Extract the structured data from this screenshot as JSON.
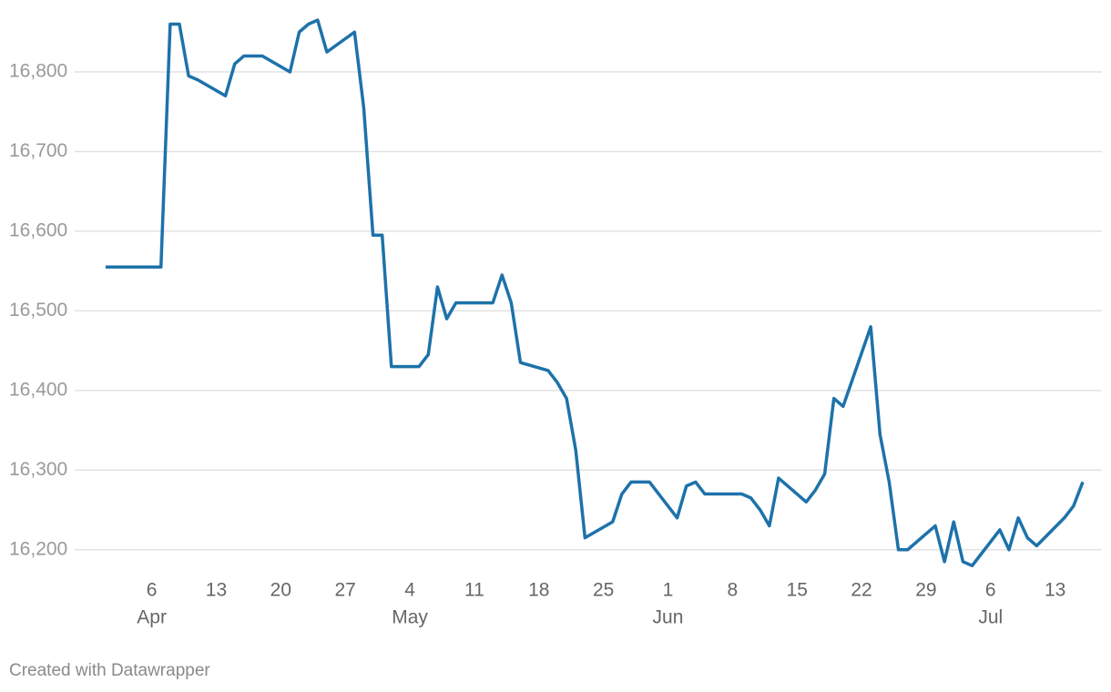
{
  "chart_data": {
    "type": "line",
    "x": [
      "Apr 1",
      "Apr 7",
      "Apr 8",
      "Apr 9",
      "Apr 10",
      "Apr 11",
      "Apr 14",
      "Apr 15",
      "Apr 16",
      "Apr 18",
      "Apr 21",
      "Apr 22",
      "Apr 23",
      "Apr 24",
      "Apr 25",
      "Apr 28",
      "Apr 29",
      "Apr 30",
      "May 1",
      "May 2",
      "May 5",
      "May 6",
      "May 7",
      "May 8",
      "May 9",
      "May 13",
      "May 14",
      "May 15",
      "May 16",
      "May 19",
      "May 20",
      "May 21",
      "May 22",
      "May 23",
      "May 26",
      "May 27",
      "May 28",
      "May 30",
      "Jun 2",
      "Jun 3",
      "Jun 4",
      "Jun 5",
      "Jun 9",
      "Jun 10",
      "Jun 11",
      "Jun 12",
      "Jun 13",
      "Jun 16",
      "Jun 17",
      "Jun 18",
      "Jun 19",
      "Jun 20",
      "Jun 23",
      "Jun 24",
      "Jun 25",
      "Jun 26",
      "Jun 27",
      "Jun 30",
      "Jul 1",
      "Jul 2",
      "Jul 3",
      "Jul 4",
      "Jul 7",
      "Jul 8",
      "Jul 9",
      "Jul 10",
      "Jul 11",
      "Jul 14",
      "Jul 15",
      "Jul 16"
    ],
    "series": [
      {
        "color": "#1d72aa",
        "values": [
          16555,
          16555,
          16860,
          16860,
          16795,
          16790,
          16770,
          16810,
          16820,
          16820,
          16800,
          16850,
          16860,
          16865,
          16825,
          16850,
          16755,
          16595,
          16595,
          16430,
          16430,
          16445,
          16530,
          16490,
          16510,
          16510,
          16545,
          16510,
          16435,
          16425,
          16410,
          16390,
          16325,
          16215,
          16235,
          16270,
          16285,
          16285,
          16240,
          16280,
          16285,
          16270,
          16270,
          16265,
          16250,
          16230,
          16290,
          16260,
          16275,
          16295,
          16390,
          16380,
          16480,
          16345,
          16285,
          16200,
          16200,
          16230,
          16185,
          16235,
          16185,
          16180,
          16225,
          16200,
          16240,
          16215,
          16205,
          16240,
          16255,
          16285
        ]
      }
    ],
    "xlim": [
      "Apr 1",
      "Jul 16"
    ],
    "xticks": [
      {
        "value": "Apr 6",
        "label": "6"
      },
      {
        "value": "Apr 13",
        "label": "13"
      },
      {
        "value": "Apr 20",
        "label": "20"
      },
      {
        "value": "Apr 27",
        "label": "27"
      },
      {
        "value": "May 4",
        "label": "4"
      },
      {
        "value": "May 11",
        "label": "11"
      },
      {
        "value": "May 18",
        "label": "18"
      },
      {
        "value": "May 25",
        "label": "25"
      },
      {
        "value": "Jun 1",
        "label": "1"
      },
      {
        "value": "Jun 8",
        "label": "8"
      },
      {
        "value": "Jun 15",
        "label": "15"
      },
      {
        "value": "Jun 22",
        "label": "22"
      },
      {
        "value": "Jun 29",
        "label": "29"
      },
      {
        "value": "Jul 6",
        "label": "6"
      },
      {
        "value": "Jul 13",
        "label": "13"
      }
    ],
    "xmonth_labels": [
      {
        "value": "Apr 6",
        "label": "Apr"
      },
      {
        "value": "May 4",
        "label": "May"
      },
      {
        "value": "Jun 1",
        "label": "Jun"
      },
      {
        "value": "Jul 6",
        "label": "Jul"
      }
    ],
    "ylim": [
      16170,
      16870
    ],
    "yticks": [
      {
        "value": 16200,
        "label": "16,200"
      },
      {
        "value": 16300,
        "label": "16,300"
      },
      {
        "value": 16400,
        "label": "16,400"
      },
      {
        "value": 16500,
        "label": "16,500"
      },
      {
        "value": 16600,
        "label": "16,600"
      },
      {
        "value": 16700,
        "label": "16,700"
      },
      {
        "value": 16800,
        "label": "16,800"
      }
    ],
    "grid": true,
    "footer": "Created with Datawrapper"
  }
}
